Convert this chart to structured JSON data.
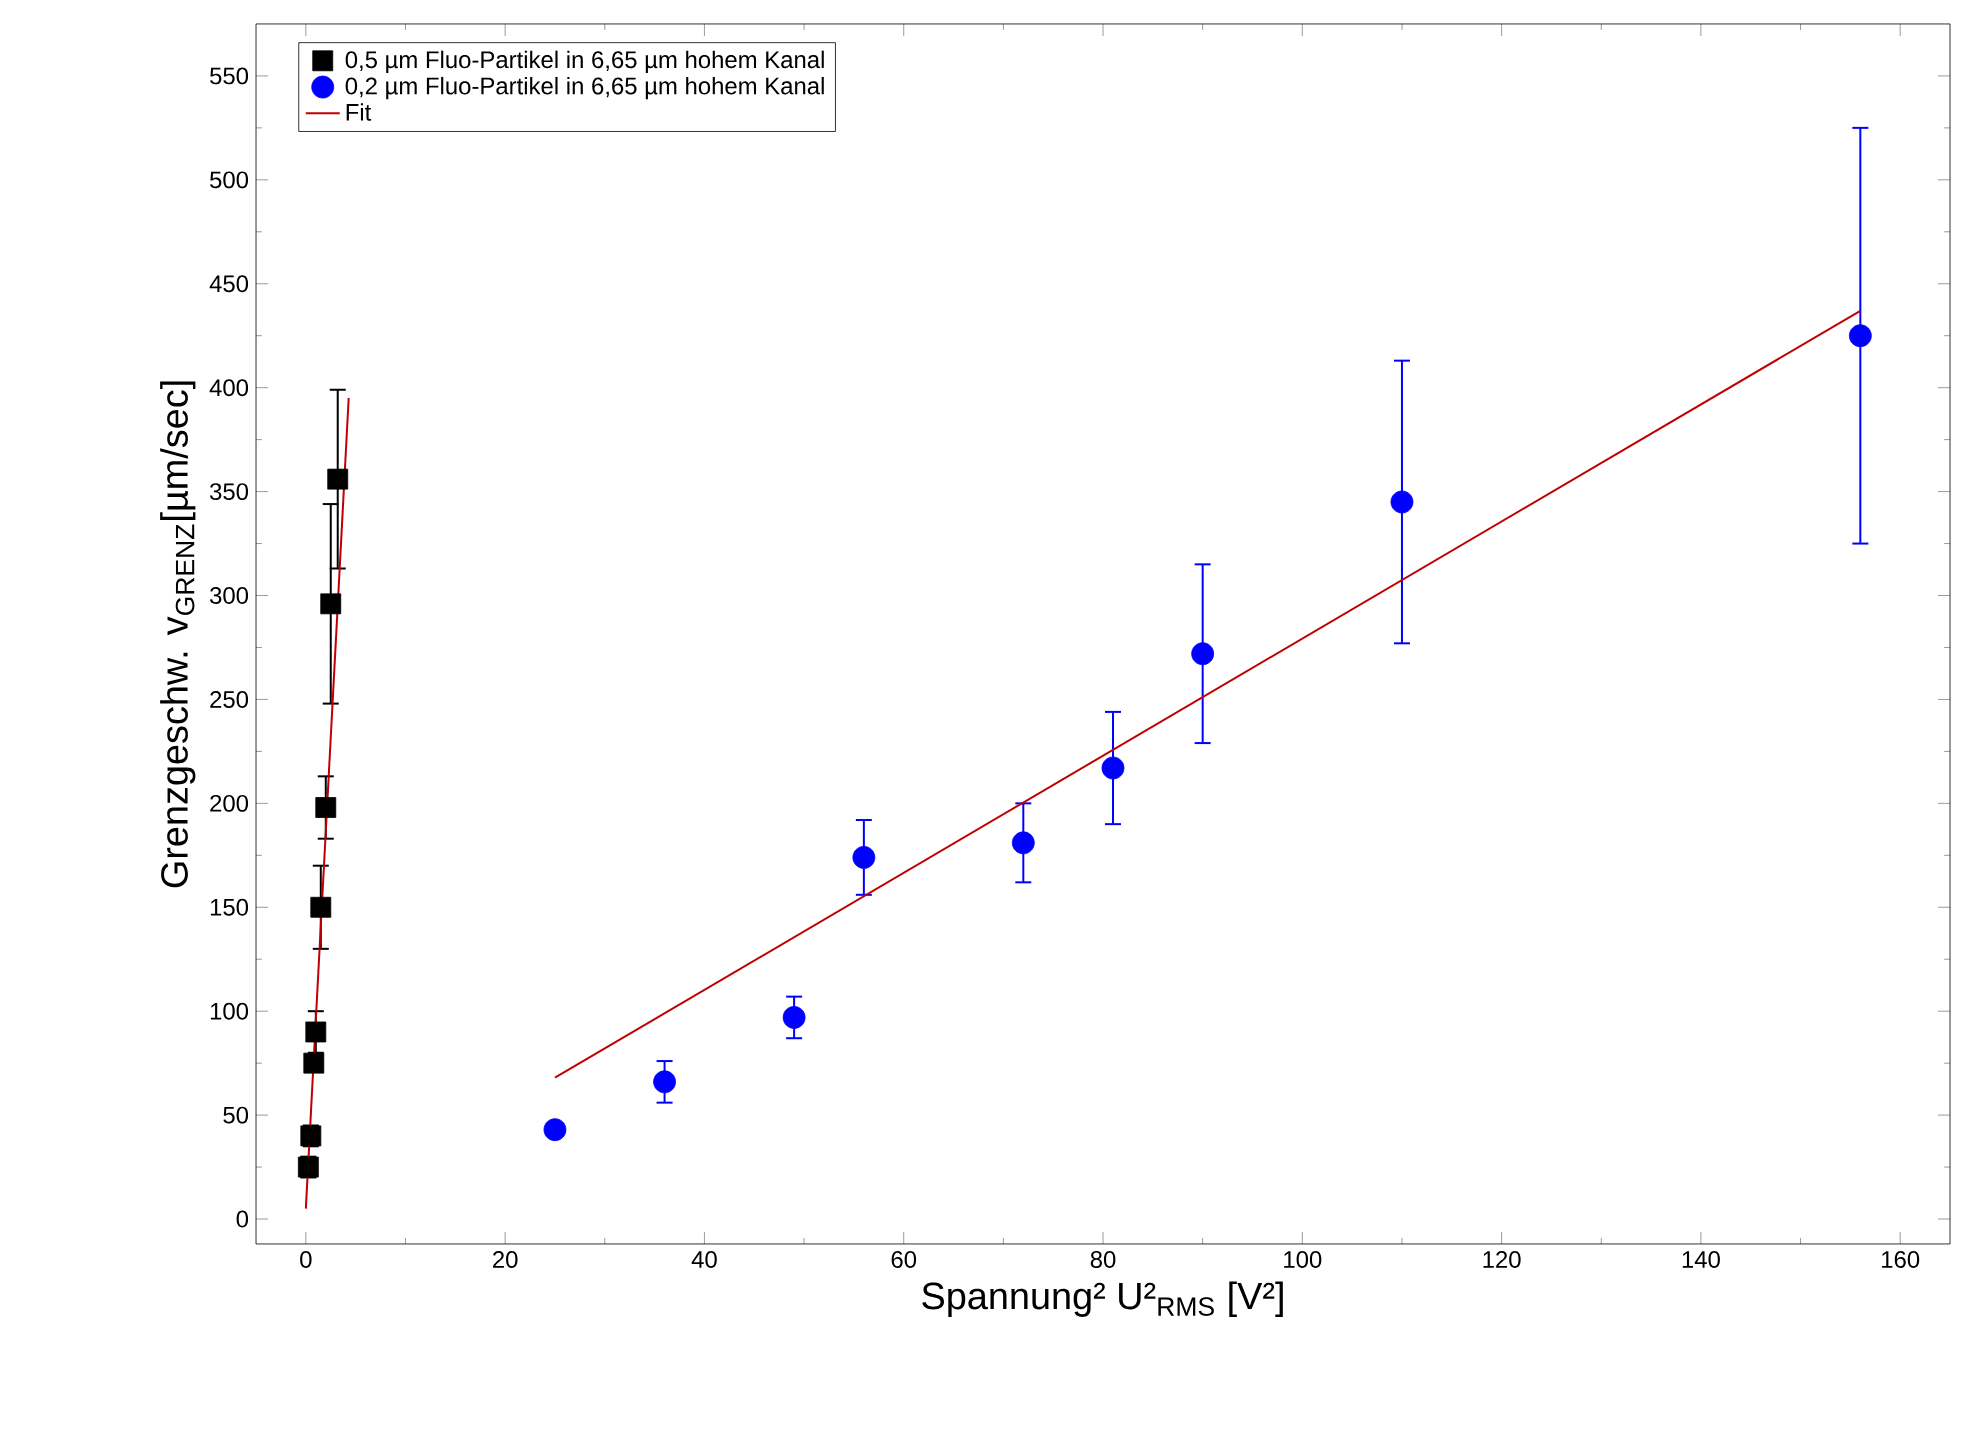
{
  "chart_data": {
    "type": "scatter",
    "xlabel": "Spannung² U²$_{RMS}$ [V²]",
    "ylabel": "Grenzgeschw. v$_{GRENZ}$[µm/sec]",
    "xlim": [
      -5,
      165
    ],
    "ylim": [
      -12,
      575
    ],
    "xticks": [
      0,
      20,
      40,
      60,
      80,
      100,
      120,
      140,
      160
    ],
    "yticks": [
      0,
      50,
      100,
      150,
      200,
      250,
      300,
      350,
      400,
      450,
      500,
      550
    ],
    "legend": "top left",
    "grid": false,
    "series": [
      {
        "name": "0,5 µm Fluo-Partikel in 6,65 µm hohem Kanal",
        "marker": "square",
        "color": "#000000",
        "x": [
          0.25,
          0.5,
          0.8,
          1.0,
          1.5,
          2.0,
          2.5,
          3.2
        ],
        "values": [
          25,
          40,
          75,
          90,
          150,
          198,
          296,
          356
        ],
        "errors": [
          5,
          5,
          null,
          10,
          20,
          15,
          48,
          43
        ]
      },
      {
        "name": "0,2 µm Fluo-Partikel in 6,65 µm hohem Kanal",
        "marker": "circle",
        "color": "#0000ff",
        "x": [
          25,
          36,
          49,
          56,
          72,
          81,
          90,
          110,
          156
        ],
        "values": [
          43,
          66,
          97,
          174,
          181,
          217,
          272,
          345,
          425
        ],
        "errors": [
          null,
          10,
          10,
          18,
          19,
          27,
          43,
          68,
          100
        ]
      },
      {
        "name": "Fit",
        "type": "line",
        "marker": "none",
        "line_style": "solid",
        "color": "#c00000",
        "x": [
          0,
          4.3
        ],
        "values": [
          5,
          395
        ]
      },
      {
        "type": "line",
        "marker": "none",
        "line_style": "solid",
        "color": "#c00000",
        "x": [
          25,
          156
        ],
        "values": [
          68,
          437
        ]
      }
    ]
  }
}
